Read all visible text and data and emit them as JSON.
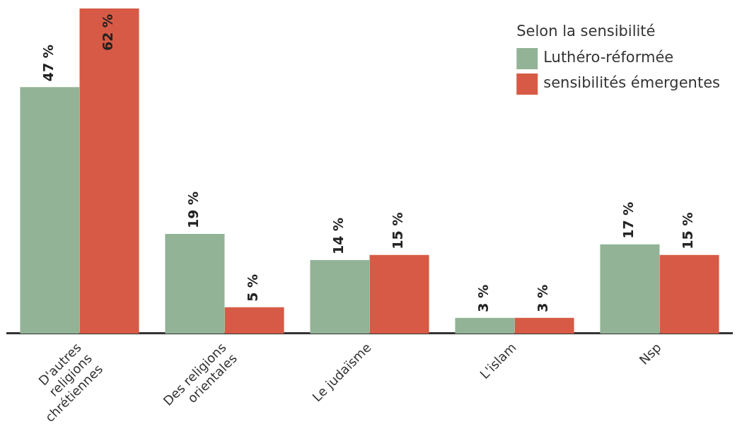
{
  "chart_data": {
    "type": "bar",
    "categories": [
      "D'autres religions chrétiennes",
      "Des religions orientales",
      "Le judaïsme",
      "L'islam",
      "Nsp"
    ],
    "series": [
      {
        "name": "Luthéro-réformée",
        "color": "#93b396",
        "values": [
          47,
          19,
          14,
          3,
          17
        ],
        "value_labels": [
          "47 %",
          "19 %",
          "14 %",
          "3 %",
          "17 %"
        ]
      },
      {
        "name": "sensibilités émergentes",
        "color": "#d65a45",
        "values": [
          62,
          5,
          15,
          3,
          15
        ],
        "value_labels": [
          "62 %",
          "5 %",
          "15 %",
          "3 %",
          "15 %"
        ]
      }
    ],
    "legend_title": "Selon la sensibilité",
    "legend": "top right",
    "grid": false
  }
}
